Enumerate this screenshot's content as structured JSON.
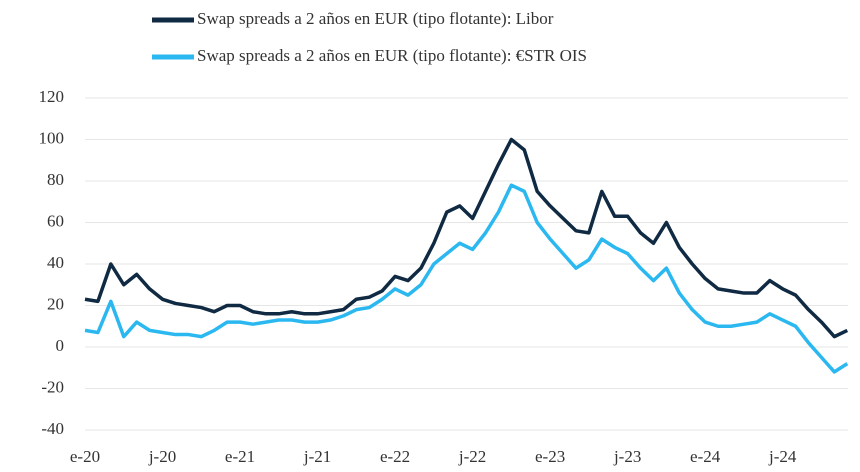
{
  "chart_data": {
    "type": "line",
    "categories": [
      "e-20",
      null,
      null,
      null,
      null,
      null,
      "j-20",
      null,
      null,
      null,
      null,
      null,
      "e-21",
      null,
      null,
      null,
      null,
      null,
      "j-21",
      null,
      null,
      null,
      null,
      null,
      "e-22",
      null,
      null,
      null,
      null,
      null,
      "j-22",
      null,
      null,
      null,
      null,
      null,
      "e-23",
      null,
      null,
      null,
      null,
      null,
      "j-23",
      null,
      null,
      null,
      null,
      null,
      "e-24",
      null,
      null,
      null,
      null,
      null,
      "j-24",
      null,
      null,
      null,
      null,
      null
    ],
    "series": [
      {
        "name": "Swap spreads a 2 años en EUR (tipo flotante): Libor",
        "color": "#0f2a42",
        "values": [
          23,
          22,
          40,
          30,
          35,
          28,
          23,
          21,
          20,
          19,
          17,
          20,
          20,
          17,
          16,
          16,
          17,
          16,
          16,
          17,
          18,
          23,
          24,
          27,
          34,
          32,
          38,
          50,
          65,
          68,
          62,
          75,
          88,
          100,
          95,
          75,
          68,
          62,
          56,
          55,
          75,
          63,
          63,
          55,
          50,
          60,
          48,
          40,
          33,
          28,
          27,
          26,
          26,
          32,
          28,
          25,
          18,
          12,
          5,
          8
        ]
      },
      {
        "name": "Swap spreads a 2 años en EUR (tipo flotante): €STR OIS",
        "color": "#2bb8f0",
        "values": [
          8,
          7,
          22,
          5,
          12,
          8,
          7,
          6,
          6,
          5,
          8,
          12,
          12,
          11,
          12,
          13,
          13,
          12,
          12,
          13,
          15,
          18,
          19,
          23,
          28,
          25,
          30,
          40,
          45,
          50,
          47,
          55,
          65,
          78,
          75,
          60,
          52,
          45,
          38,
          42,
          52,
          48,
          45,
          38,
          32,
          38,
          26,
          18,
          12,
          10,
          10,
          11,
          12,
          16,
          13,
          10,
          2,
          -5,
          -12,
          -8
        ]
      }
    ],
    "ylim": [
      -40,
      120
    ],
    "yticks": [
      -40,
      -20,
      0,
      20,
      40,
      60,
      80,
      100,
      120
    ],
    "grid": true
  }
}
